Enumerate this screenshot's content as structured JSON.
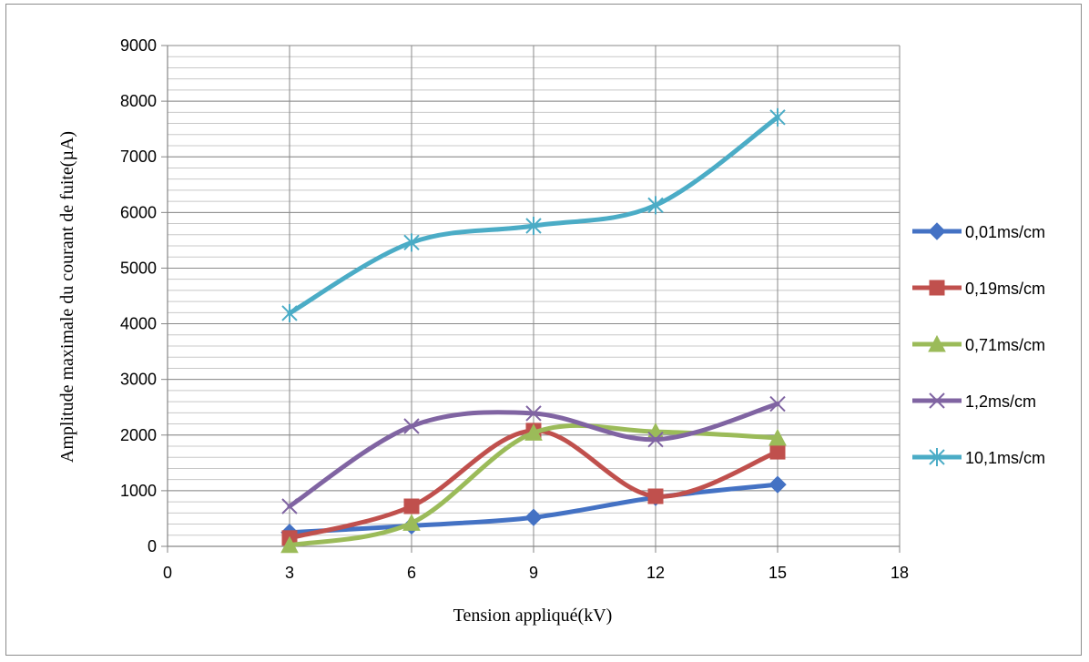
{
  "chart_data": {
    "type": "line",
    "title": "",
    "xlabel": "Tension appliqué(kV)",
    "ylabel": "Amplitude maximale du courant de fuite(µA)",
    "xlim": [
      0,
      18
    ],
    "ylim": [
      0,
      9000
    ],
    "x_ticks": [
      0,
      3,
      6,
      9,
      12,
      15,
      18
    ],
    "y_ticks": [
      0,
      1000,
      2000,
      3000,
      4000,
      5000,
      6000,
      7000,
      8000,
      9000
    ],
    "x_tick_labels": [
      "0",
      "3",
      "6",
      "9",
      "12",
      "15",
      "18"
    ],
    "y_tick_labels": [
      "0",
      "1000",
      "2000",
      "3000",
      "4000",
      "5000",
      "6000",
      "7000",
      "8000",
      "9000"
    ],
    "grid": true,
    "smooth": true,
    "legend_position": "right",
    "x": [
      3,
      6,
      9,
      12,
      15
    ],
    "series": [
      {
        "name": "0,01ms/cm",
        "values": [
          250,
          370,
          520,
          880,
          1110
        ],
        "color": "#4472c4",
        "marker": "diamond"
      },
      {
        "name": "0,19ms/cm",
        "values": [
          150,
          720,
          2080,
          900,
          1700
        ],
        "color": "#c0504d",
        "marker": "square"
      },
      {
        "name": "0,71ms/cm",
        "values": [
          20,
          420,
          2040,
          2060,
          1950
        ],
        "color": "#9bbb59",
        "marker": "triangle"
      },
      {
        "name": "1,2ms/cm",
        "values": [
          720,
          2160,
          2390,
          1920,
          2560
        ],
        "color": "#8064a2",
        "marker": "x"
      },
      {
        "name": "10,1ms/cm",
        "values": [
          4190,
          5460,
          5760,
          6130,
          7710
        ],
        "color": "#4bacc6",
        "marker": "star"
      }
    ]
  }
}
